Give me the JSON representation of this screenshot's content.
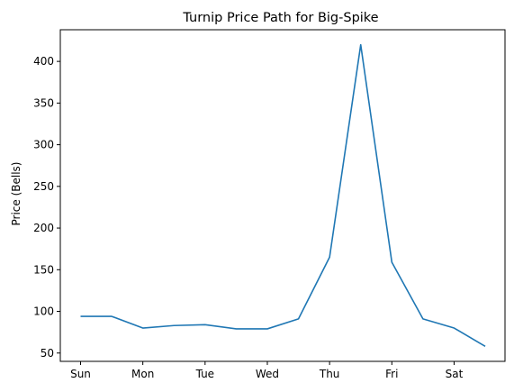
{
  "chart_data": {
    "type": "line",
    "title": "Turnip Price Path for Big-Spike",
    "xlabel": "",
    "ylabel": "Price (Bells)",
    "x_tick_labels": [
      "Sun",
      "Mon",
      "Tue",
      "Wed",
      "Thu",
      "Fri",
      "Sat"
    ],
    "y_ticks": [
      50,
      100,
      150,
      200,
      250,
      300,
      350,
      400
    ],
    "ylim": [
      40,
      438
    ],
    "series": [
      {
        "color": "#1f77b4",
        "x": [
          "Sun",
          "Sun PM",
          "Mon",
          "Mon PM",
          "Tue",
          "Tue PM",
          "Wed",
          "Wed PM",
          "Thu",
          "Thu PM",
          "Fri",
          "Fri PM",
          "Sat",
          "Sat PM"
        ],
        "values": [
          94,
          94,
          80,
          83,
          84,
          79,
          79,
          91,
          165,
          420,
          159,
          91,
          80,
          58
        ]
      }
    ],
    "grid": false,
    "legend": false
  }
}
